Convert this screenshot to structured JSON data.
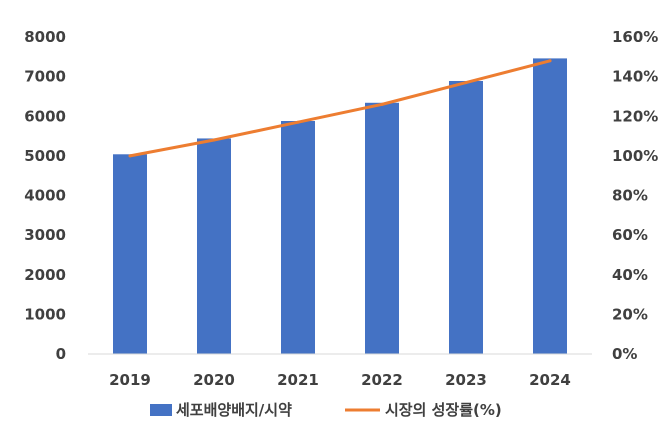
{
  "chart_data": {
    "type": "bar",
    "categories": [
      "2019",
      "2020",
      "2021",
      "2022",
      "2023",
      "2024"
    ],
    "series": [
      {
        "name": "세포배양배지/시약",
        "type": "bar",
        "axis": "left",
        "color": "#4472C4",
        "values": [
          5040,
          5440,
          5880,
          6340,
          6890,
          7460
        ]
      },
      {
        "name": "시장의 성장률(%)",
        "type": "line",
        "axis": "right",
        "color": "#ED7D31",
        "values": [
          100,
          108,
          117,
          126,
          137,
          148
        ]
      }
    ],
    "y_left": {
      "min": 0,
      "max": 8000,
      "ticks": [
        "0",
        "1000",
        "2000",
        "3000",
        "4000",
        "5000",
        "6000",
        "7000",
        "8000"
      ]
    },
    "y_right": {
      "min": 0,
      "max": 160,
      "ticks": [
        "0%",
        "20%",
        "40%",
        "60%",
        "80%",
        "100%",
        "120%",
        "140%",
        "160%"
      ]
    },
    "grid": false,
    "legend_position": "bottom",
    "title": "",
    "xlabel": "",
    "ylabel": ""
  }
}
